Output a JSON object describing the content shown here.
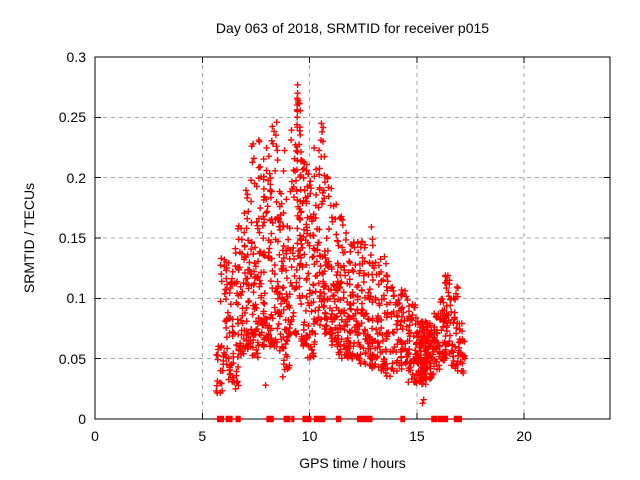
{
  "chart_data": {
    "type": "scatter",
    "title": "Day 063 of 2018, SRMTID for receiver p015",
    "xlabel": "GPS time / hours",
    "ylabel": "SRMTID / TECUs",
    "xlim": [
      0,
      24
    ],
    "ylim": [
      0,
      0.3
    ],
    "xticks": {
      "values": [
        0,
        5,
        10,
        15,
        20
      ],
      "labels": [
        "0",
        "5",
        "10",
        "15",
        "20"
      ]
    },
    "yticks": {
      "values": [
        0,
        0.05,
        0.1,
        0.15,
        0.2,
        0.25,
        0.3
      ],
      "labels": [
        "0",
        "0.05",
        "0.1",
        "0.15",
        "0.2",
        "0.25",
        "0.3"
      ]
    },
    "grid": {
      "visible": true,
      "style": "dashed",
      "color": "#a6a6a6"
    },
    "axis_color": "#000000",
    "background": "#ffffff",
    "legend": "none",
    "series": [
      {
        "name": "SRMTID",
        "marker": "plus",
        "color": "#ff0000",
        "x_extent_hours": [
          5.65,
          17.3
        ],
        "clusters_format": [
          "xStartHour",
          "xEndHour",
          "yMin",
          "yMax",
          "count",
          "lowBias"
        ],
        "clusters": [
          [
            5.65,
            5.95,
            0.02,
            0.065,
            14,
            1.2
          ],
          [
            5.85,
            6.15,
            0.04,
            0.135,
            26,
            1.4
          ],
          [
            6.1,
            6.45,
            0.03,
            0.13,
            34,
            1.3
          ],
          [
            6.4,
            6.7,
            0.025,
            0.145,
            30,
            1.3
          ],
          [
            6.65,
            7.0,
            0.05,
            0.16,
            40,
            1.4
          ],
          [
            6.95,
            7.3,
            0.055,
            0.19,
            44,
            1.5
          ],
          [
            7.25,
            7.6,
            0.05,
            0.235,
            46,
            1.7
          ],
          [
            7.55,
            7.9,
            0.06,
            0.232,
            50,
            1.7
          ],
          [
            7.85,
            8.2,
            0.065,
            0.225,
            50,
            1.6
          ],
          [
            8.15,
            8.55,
            0.06,
            0.246,
            46,
            1.7
          ],
          [
            8.5,
            8.8,
            0.055,
            0.238,
            40,
            1.6
          ],
          [
            8.75,
            9.1,
            0.04,
            0.225,
            44,
            1.5
          ],
          [
            9.05,
            9.4,
            0.07,
            0.245,
            40,
            1.5
          ],
          [
            9.4,
            9.62,
            0.1,
            0.277,
            55,
            1.1
          ],
          [
            9.6,
            9.9,
            0.06,
            0.215,
            44,
            1.5
          ],
          [
            9.85,
            10.2,
            0.05,
            0.21,
            48,
            1.5
          ],
          [
            10.15,
            10.5,
            0.06,
            0.225,
            44,
            1.6
          ],
          [
            10.42,
            10.72,
            0.08,
            0.246,
            34,
            1.6
          ],
          [
            10.68,
            11.05,
            0.07,
            0.205,
            44,
            1.5
          ],
          [
            11.0,
            11.35,
            0.06,
            0.178,
            44,
            1.4
          ],
          [
            11.3,
            11.62,
            0.05,
            0.17,
            40,
            1.4
          ],
          [
            11.58,
            11.9,
            0.05,
            0.157,
            38,
            1.4
          ],
          [
            11.85,
            12.25,
            0.048,
            0.152,
            44,
            1.3
          ],
          [
            12.2,
            12.6,
            0.045,
            0.15,
            48,
            1.4
          ],
          [
            12.55,
            12.95,
            0.04,
            0.148,
            44,
            1.4
          ],
          [
            12.9,
            13.3,
            0.04,
            0.135,
            38,
            1.3
          ],
          [
            13.25,
            13.62,
            0.04,
            0.14,
            34,
            1.4
          ],
          [
            13.55,
            13.95,
            0.035,
            0.12,
            32,
            1.3
          ],
          [
            13.9,
            14.3,
            0.035,
            0.112,
            30,
            1.2
          ],
          [
            14.25,
            14.65,
            0.04,
            0.11,
            36,
            1.2
          ],
          [
            14.6,
            15.0,
            0.03,
            0.095,
            44,
            1.2
          ],
          [
            14.95,
            15.45,
            0.028,
            0.082,
            85,
            1.1
          ],
          [
            15.35,
            15.8,
            0.033,
            0.08,
            65,
            1.1
          ],
          [
            15.75,
            16.1,
            0.04,
            0.092,
            36,
            1.2
          ],
          [
            16.05,
            16.35,
            0.048,
            0.1,
            30,
            1.2
          ],
          [
            16.3,
            16.6,
            0.05,
            0.122,
            42,
            1.2
          ],
          [
            16.6,
            16.92,
            0.042,
            0.11,
            30,
            1.2
          ],
          [
            16.9,
            17.25,
            0.038,
            0.085,
            28,
            1.3
          ]
        ],
        "outliers": [
          [
            9.44,
            0.277
          ],
          [
            9.44,
            0.27
          ],
          [
            9.47,
            0.262
          ],
          [
            9.44,
            0.255
          ],
          [
            10.55,
            0.245
          ],
          [
            10.58,
            0.238
          ],
          [
            10.62,
            0.23
          ],
          [
            12.88,
            0.159
          ],
          [
            12.93,
            0.149
          ],
          [
            15.26,
            0.013
          ],
          [
            15.32,
            0.016
          ],
          [
            6.55,
            0.025
          ],
          [
            6.6,
            0.03
          ],
          [
            7.95,
            0.028
          ],
          [
            8.75,
            0.035
          ]
        ],
        "zero_runs": [
          [
            5.72,
            5.98
          ],
          [
            6.12,
            6.38
          ],
          [
            6.58,
            6.76
          ],
          [
            8.02,
            8.3
          ],
          [
            8.82,
            9.08
          ],
          [
            9.18,
            9.26
          ],
          [
            9.7,
            10.05
          ],
          [
            10.23,
            10.7
          ],
          [
            11.26,
            11.44
          ],
          [
            12.24,
            12.9
          ],
          [
            14.26,
            14.42
          ],
          [
            15.7,
            15.92
          ],
          [
            16.0,
            16.42
          ],
          [
            16.75,
            17.07
          ]
        ]
      }
    ]
  }
}
